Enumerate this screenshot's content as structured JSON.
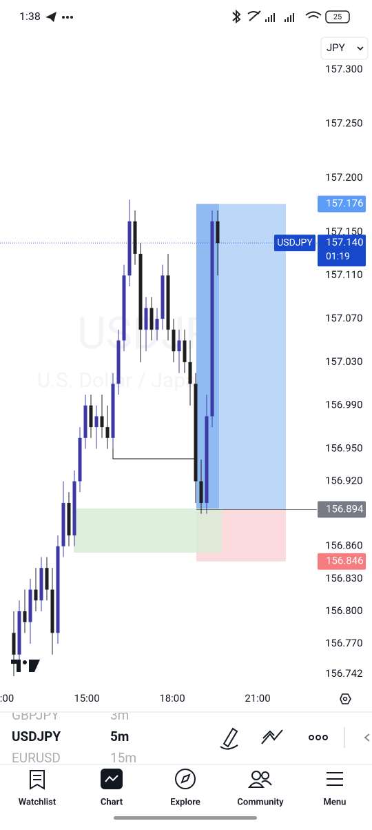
{
  "status_bar": {
    "time": "1:38",
    "battery": "25"
  },
  "symbol_selector": "JPY",
  "watermark": {
    "symbol": "USDJPY",
    "description": "U.S. Dollar / Japanese Yen"
  },
  "chart": {
    "candles": [
      [
        156.78,
        156.8,
        156.74,
        156.76
      ],
      [
        156.76,
        156.81,
        156.75,
        156.8
      ],
      [
        156.8,
        156.82,
        156.78,
        156.79
      ],
      [
        156.79,
        156.83,
        156.77,
        156.82
      ],
      [
        156.82,
        156.84,
        156.8,
        156.81
      ],
      [
        156.81,
        156.85,
        156.8,
        156.84
      ],
      [
        156.84,
        156.85,
        156.81,
        156.82
      ],
      [
        156.82,
        156.84,
        156.76,
        156.78
      ],
      [
        156.78,
        156.87,
        156.77,
        156.86
      ],
      [
        156.86,
        156.92,
        156.85,
        156.9
      ],
      [
        156.9,
        156.91,
        156.86,
        156.87
      ],
      [
        156.87,
        156.93,
        156.86,
        156.92
      ],
      [
        156.92,
        156.97,
        156.91,
        156.96
      ],
      [
        156.96,
        157.0,
        156.95,
        156.99
      ],
      [
        156.99,
        157.0,
        156.96,
        156.97
      ],
      [
        156.97,
        156.99,
        156.95,
        156.98
      ],
      [
        156.98,
        157.0,
        156.96,
        156.97
      ],
      [
        156.97,
        156.99,
        156.95,
        156.96
      ],
      [
        156.96,
        157.02,
        156.95,
        157.01
      ],
      [
        157.01,
        157.06,
        157.0,
        157.05
      ],
      [
        157.05,
        157.12,
        157.04,
        157.11
      ],
      [
        157.11,
        157.18,
        157.1,
        157.16
      ],
      [
        157.16,
        157.17,
        157.12,
        157.13
      ],
      [
        157.13,
        157.14,
        157.03,
        157.06
      ],
      [
        157.06,
        157.09,
        157.04,
        157.08
      ],
      [
        157.08,
        157.09,
        157.05,
        157.06
      ],
      [
        157.06,
        157.08,
        157.05,
        157.07
      ],
      [
        157.07,
        157.12,
        157.06,
        157.11
      ],
      [
        157.11,
        157.13,
        157.05,
        157.06
      ],
      [
        157.06,
        157.07,
        157.03,
        157.04
      ],
      [
        157.04,
        157.06,
        157.02,
        157.05
      ],
      [
        157.05,
        157.06,
        157.02,
        157.03
      ],
      [
        157.03,
        157.05,
        156.99,
        157.01
      ],
      [
        157.01,
        157.02,
        156.9,
        156.92
      ],
      [
        156.92,
        156.94,
        156.89,
        156.9
      ],
      [
        156.9,
        157.0,
        156.89,
        156.98
      ],
      [
        156.98,
        157.17,
        156.97,
        157.16
      ],
      [
        157.16,
        157.17,
        157.11,
        157.14
      ]
    ],
    "price_ticks": [
      {
        "value": 157.3,
        "label": "157.300"
      },
      {
        "value": 157.25,
        "label": "157.250"
      },
      {
        "value": 157.2,
        "label": "157.200"
      },
      {
        "value": 157.15,
        "label": "157.150"
      },
      {
        "value": 157.11,
        "label": "157.110"
      },
      {
        "value": 157.07,
        "label": "157.070"
      },
      {
        "value": 157.03,
        "label": "157.030"
      },
      {
        "value": 156.99,
        "label": "156.990"
      },
      {
        "value": 156.95,
        "label": "156.950"
      },
      {
        "value": 156.92,
        "label": "156.920"
      },
      {
        "value": 156.86,
        "label": "156.860"
      },
      {
        "value": 156.83,
        "label": "156.830"
      },
      {
        "value": 156.8,
        "label": "156.800"
      },
      {
        "value": 156.77,
        "label": "156.770"
      },
      {
        "value": 156.742,
        "label": "156.742"
      }
    ],
    "time_ticks": [
      ":00",
      "15:00",
      "18:00",
      "21:00"
    ],
    "last_price": {
      "symbol": "USDJPY",
      "price": {
        "value": 157.14,
        "label": "157.140"
      },
      "countdown": "01:19"
    },
    "position": {
      "target": {
        "value": 157.176,
        "label": "157.176"
      },
      "entry": {
        "value": 156.894,
        "label": "156.894"
      },
      "stop": {
        "value": 156.846,
        "label": "156.846"
      }
    }
  },
  "watchlist": [
    {
      "symbol": "GBPJPY",
      "interval": "3m"
    },
    {
      "symbol": "USDJPY",
      "interval": "5m"
    },
    {
      "symbol": "EURUSD",
      "interval": "15m"
    }
  ],
  "nav": [
    "Watchlist",
    "Chart",
    "Explore",
    "Community",
    "Menu"
  ]
}
